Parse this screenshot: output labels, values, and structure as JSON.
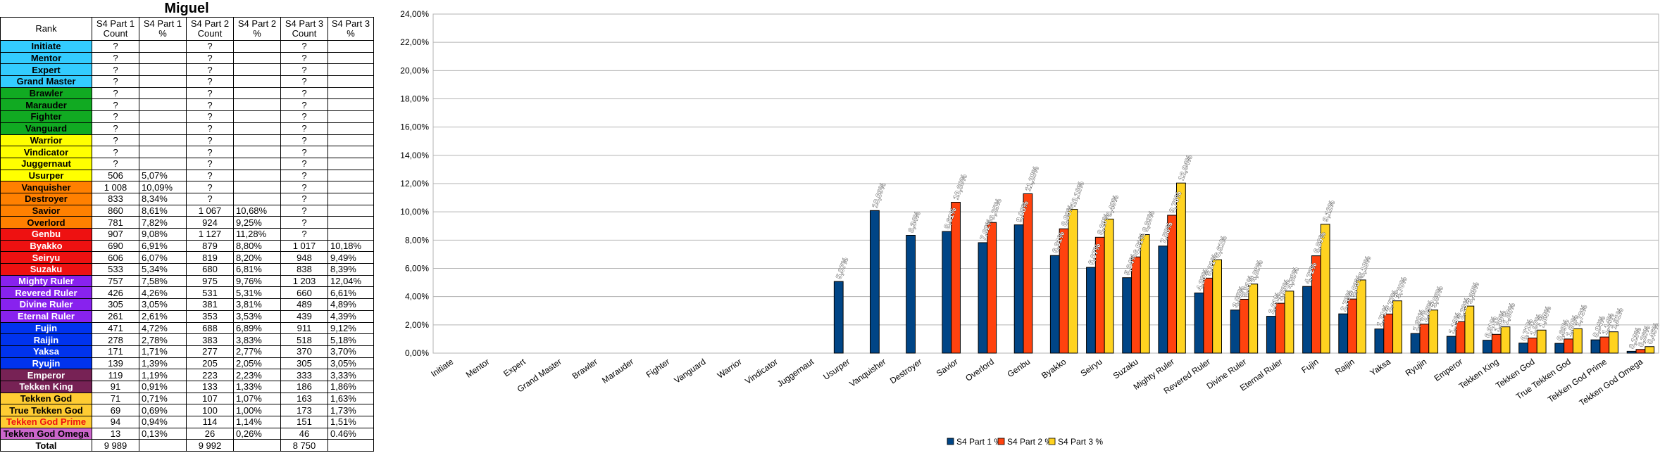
{
  "sheet_title": "Miguel",
  "table": {
    "headers": [
      "Rank",
      "S4 Part 1 Count",
      "S4 Part 1 %",
      "S4 Part 2 Count",
      "S4 Part 2 %",
      "S4 Part 3 Count",
      "S4 Part 3 %"
    ],
    "rows": [
      {
        "rank": "Initiate",
        "bg": "#33ccff",
        "fg": "#000000",
        "c1": "?",
        "p1": "",
        "c2": "?",
        "p2": "",
        "c3": "?",
        "p3": ""
      },
      {
        "rank": "Mentor",
        "bg": "#33ccff",
        "fg": "#000000",
        "c1": "?",
        "p1": "",
        "c2": "?",
        "p2": "",
        "c3": "?",
        "p3": ""
      },
      {
        "rank": "Expert",
        "bg": "#33ccff",
        "fg": "#000000",
        "c1": "?",
        "p1": "",
        "c2": "?",
        "p2": "",
        "c3": "?",
        "p3": ""
      },
      {
        "rank": "Grand Master",
        "bg": "#33ccff",
        "fg": "#000000",
        "c1": "?",
        "p1": "",
        "c2": "?",
        "p2": "",
        "c3": "?",
        "p3": ""
      },
      {
        "rank": "Brawler",
        "bg": "#11aa22",
        "fg": "#000000",
        "c1": "?",
        "p1": "",
        "c2": "?",
        "p2": "",
        "c3": "?",
        "p3": ""
      },
      {
        "rank": "Marauder",
        "bg": "#11aa22",
        "fg": "#000000",
        "c1": "?",
        "p1": "",
        "c2": "?",
        "p2": "",
        "c3": "?",
        "p3": ""
      },
      {
        "rank": "Fighter",
        "bg": "#11aa22",
        "fg": "#000000",
        "c1": "?",
        "p1": "",
        "c2": "?",
        "p2": "",
        "c3": "?",
        "p3": ""
      },
      {
        "rank": "Vanguard",
        "bg": "#11aa22",
        "fg": "#000000",
        "c1": "?",
        "p1": "",
        "c2": "?",
        "p2": "",
        "c3": "?",
        "p3": ""
      },
      {
        "rank": "Warrior",
        "bg": "#ffff00",
        "fg": "#000000",
        "c1": "?",
        "p1": "",
        "c2": "?",
        "p2": "",
        "c3": "?",
        "p3": ""
      },
      {
        "rank": "Vindicator",
        "bg": "#ffff00",
        "fg": "#000000",
        "c1": "?",
        "p1": "",
        "c2": "?",
        "p2": "",
        "c3": "?",
        "p3": ""
      },
      {
        "rank": "Juggernaut",
        "bg": "#ffff00",
        "fg": "#000000",
        "c1": "?",
        "p1": "",
        "c2": "?",
        "p2": "",
        "c3": "?",
        "p3": ""
      },
      {
        "rank": "Usurper",
        "bg": "#ffff00",
        "fg": "#000000",
        "c1": "506",
        "p1": "5,07%",
        "c2": "?",
        "p2": "",
        "c3": "?",
        "p3": ""
      },
      {
        "rank": "Vanquisher",
        "bg": "#ff8000",
        "fg": "#000000",
        "c1": "1 008",
        "p1": "10,09%",
        "c2": "?",
        "p2": "",
        "c3": "?",
        "p3": ""
      },
      {
        "rank": "Destroyer",
        "bg": "#ff8000",
        "fg": "#000000",
        "c1": "833",
        "p1": "8,34%",
        "c2": "?",
        "p2": "",
        "c3": "?",
        "p3": ""
      },
      {
        "rank": "Savior",
        "bg": "#ff8000",
        "fg": "#000000",
        "c1": "860",
        "p1": "8,61%",
        "c2": "1 067",
        "p2": "10,68%",
        "c3": "?",
        "p3": ""
      },
      {
        "rank": "Overlord",
        "bg": "#ff8000",
        "fg": "#000000",
        "c1": "781",
        "p1": "7,82%",
        "c2": "924",
        "p2": "9,25%",
        "c3": "?",
        "p3": ""
      },
      {
        "rank": "Genbu",
        "bg": "#ee1111",
        "fg": "#ffffff",
        "c1": "907",
        "p1": "9,08%",
        "c2": "1 127",
        "p2": "11,28%",
        "c3": "?",
        "p3": ""
      },
      {
        "rank": "Byakko",
        "bg": "#ee1111",
        "fg": "#ffffff",
        "c1": "690",
        "p1": "6,91%",
        "c2": "879",
        "p2": "8,80%",
        "c3": "1 017",
        "p3": "10,18%"
      },
      {
        "rank": "Seiryu",
        "bg": "#ee1111",
        "fg": "#ffffff",
        "c1": "606",
        "p1": "6,07%",
        "c2": "819",
        "p2": "8,20%",
        "c3": "948",
        "p3": "9,49%"
      },
      {
        "rank": "Suzaku",
        "bg": "#ee1111",
        "fg": "#ffffff",
        "c1": "533",
        "p1": "5,34%",
        "c2": "680",
        "p2": "6,81%",
        "c3": "838",
        "p3": "8,39%"
      },
      {
        "rank": "Mighty Ruler",
        "bg": "#8822ee",
        "fg": "#ffffff",
        "c1": "757",
        "p1": "7,58%",
        "c2": "975",
        "p2": "9,76%",
        "c3": "1 203",
        "p3": "12,04%"
      },
      {
        "rank": "Revered Ruler",
        "bg": "#8822ee",
        "fg": "#ffffff",
        "c1": "426",
        "p1": "4,26%",
        "c2": "531",
        "p2": "5,31%",
        "c3": "660",
        "p3": "6,61%"
      },
      {
        "rank": "Divine Ruler",
        "bg": "#8822ee",
        "fg": "#ffffff",
        "c1": "305",
        "p1": "3,05%",
        "c2": "381",
        "p2": "3,81%",
        "c3": "489",
        "p3": "4,89%"
      },
      {
        "rank": "Eternal Ruler",
        "bg": "#8822ee",
        "fg": "#ffffff",
        "c1": "261",
        "p1": "2,61%",
        "c2": "353",
        "p2": "3,53%",
        "c3": "439",
        "p3": "4,39%"
      },
      {
        "rank": "Fujin",
        "bg": "#0033ee",
        "fg": "#ffffff",
        "c1": "471",
        "p1": "4,72%",
        "c2": "688",
        "p2": "6,89%",
        "c3": "911",
        "p3": "9,12%"
      },
      {
        "rank": "Raijin",
        "bg": "#0033ee",
        "fg": "#ffffff",
        "c1": "278",
        "p1": "2,78%",
        "c2": "383",
        "p2": "3,83%",
        "c3": "518",
        "p3": "5,18%"
      },
      {
        "rank": "Yaksa",
        "bg": "#0033ee",
        "fg": "#ffffff",
        "c1": "171",
        "p1": "1,71%",
        "c2": "277",
        "p2": "2,77%",
        "c3": "370",
        "p3": "3,70%"
      },
      {
        "rank": "Ryujin",
        "bg": "#0033ee",
        "fg": "#ffffff",
        "c1": "139",
        "p1": "1,39%",
        "c2": "205",
        "p2": "2,05%",
        "c3": "305",
        "p3": "3,05%"
      },
      {
        "rank": "Emperor",
        "bg": "#772255",
        "fg": "#ffffff",
        "c1": "119",
        "p1": "1,19%",
        "c2": "223",
        "p2": "2,23%",
        "c3": "333",
        "p3": "3,33%"
      },
      {
        "rank": "Tekken King",
        "bg": "#772255",
        "fg": "#ffffff",
        "c1": "91",
        "p1": "0,91%",
        "c2": "133",
        "p2": "1,33%",
        "c3": "186",
        "p3": "1,86%"
      },
      {
        "rank": "Tekken God",
        "bg": "#ffcc33",
        "fg": "#000000",
        "c1": "71",
        "p1": "0,71%",
        "c2": "107",
        "p2": "1,07%",
        "c3": "163",
        "p3": "1,63%"
      },
      {
        "rank": "True Tekken God",
        "bg": "#ffcc33",
        "fg": "#000000",
        "c1": "69",
        "p1": "0,69%",
        "c2": "100",
        "p2": "1,00%",
        "c3": "173",
        "p3": "1,73%"
      },
      {
        "rank": "Tekken God Prime",
        "bg": "#ffcc33",
        "fg": "#ee1111",
        "c1": "94",
        "p1": "0,94%",
        "c2": "114",
        "p2": "1,14%",
        "c3": "151",
        "p3": "1,51%"
      },
      {
        "rank": "Tekken God Omega",
        "bg": "#cc66cc",
        "fg": "#000000",
        "c1": "13",
        "p1": "0,13%",
        "c2": "26",
        "p2": "0,26%",
        "c3": "46",
        "p3": "0.46%"
      }
    ],
    "total": {
      "rank": "Total",
      "c1": "9 989",
      "p1": "",
      "c2": "9 992",
      "p2": "",
      "c3": "8 750",
      "p3": ""
    }
  },
  "chart_data": {
    "type": "bar",
    "categories": [
      "Initiate",
      "Mentor",
      "Expert",
      "Grand Master",
      "Brawler",
      "Marauder",
      "Fighter",
      "Vanguard",
      "Warrior",
      "Vindicator",
      "Juggernaut",
      "Usurper",
      "Vanquisher",
      "Destroyer",
      "Savior",
      "Overlord",
      "Genbu",
      "Byakko",
      "Seiryu",
      "Suzaku",
      "Mighty Ruler",
      "Revered Ruler",
      "Divine Ruler",
      "Eternal Ruler",
      "Fujin",
      "Raijin",
      "Yaksa",
      "Ryujin",
      "Emperor",
      "Tekken King",
      "Tekken God",
      "True Tekken God",
      "Tekken God Prime",
      "Tekken God Omega"
    ],
    "series": [
      {
        "name": "S4 Part 1 %",
        "color": "#004586",
        "values": [
          null,
          null,
          null,
          null,
          null,
          null,
          null,
          null,
          null,
          null,
          null,
          5.07,
          10.09,
          8.34,
          8.61,
          7.82,
          9.08,
          6.91,
          6.07,
          5.34,
          7.58,
          4.26,
          3.05,
          2.61,
          4.72,
          2.78,
          1.71,
          1.39,
          1.19,
          0.91,
          0.71,
          0.69,
          0.94,
          0.13
        ],
        "labels": [
          null,
          null,
          null,
          null,
          null,
          null,
          null,
          null,
          null,
          null,
          null,
          "5,07%",
          "10,09%",
          "8,34%",
          "8,61%",
          "7,82%",
          "9,08%",
          "6,91%",
          "6,07%",
          "5,34%",
          "7,58%",
          "4,26%",
          "3,05%",
          "2,61%",
          "4,72%",
          "2,78%",
          "1,71%",
          "1,39%",
          "1,19%",
          "0,91%",
          "0,71%",
          "0,69%",
          "0,94%",
          "0,13%"
        ]
      },
      {
        "name": "S4 Part 2 %",
        "color": "#ff420e",
        "values": [
          null,
          null,
          null,
          null,
          null,
          null,
          null,
          null,
          null,
          null,
          null,
          null,
          null,
          null,
          10.68,
          9.25,
          11.28,
          8.8,
          8.2,
          6.81,
          9.76,
          5.31,
          3.81,
          3.53,
          6.89,
          3.83,
          2.77,
          2.05,
          2.23,
          1.33,
          1.07,
          1.0,
          1.14,
          0.26
        ],
        "labels": [
          null,
          null,
          null,
          null,
          null,
          null,
          null,
          null,
          null,
          null,
          null,
          null,
          null,
          null,
          "10,68%",
          "9,25%",
          "11,28%",
          "8,80%",
          "8,20%",
          "6,81%",
          "9,76%",
          "5,31%",
          "3,81%",
          "3,53%",
          "6,89%",
          "3,83%",
          "2,77%",
          "2,05%",
          "2,23%",
          "1,33%",
          "1,07%",
          "1,00%",
          "1,14%",
          "0,26%"
        ]
      },
      {
        "name": "S4 Part 3 %",
        "color": "#ffd320",
        "values": [
          null,
          null,
          null,
          null,
          null,
          null,
          null,
          null,
          null,
          null,
          null,
          null,
          null,
          null,
          null,
          null,
          null,
          10.18,
          9.49,
          8.39,
          12.04,
          6.61,
          4.89,
          4.39,
          9.12,
          5.18,
          3.7,
          3.05,
          3.33,
          1.86,
          1.63,
          1.73,
          1.51,
          0.46
        ],
        "labels": [
          null,
          null,
          null,
          null,
          null,
          null,
          null,
          null,
          null,
          null,
          null,
          null,
          null,
          null,
          null,
          null,
          null,
          "10,18%",
          "9,49%",
          "8,39%",
          "12,04%",
          "6,61%",
          "4,89%",
          "4,39%",
          "9,12%",
          "5,18%",
          "3,70%",
          "3,05%",
          "3,33%",
          "1,86%",
          "1,63%",
          "1,73%",
          "1,51%",
          "0,46%"
        ]
      }
    ],
    "yticks": [
      "0,00%",
      "2,00%",
      "4,00%",
      "6,00%",
      "8,00%",
      "10,00%",
      "12,00%",
      "14,00%",
      "16,00%",
      "18,00%",
      "20,00%",
      "22,00%",
      "24,00%"
    ],
    "ylim": [
      0,
      24
    ],
    "grid": true,
    "legend_position": "bottom"
  }
}
